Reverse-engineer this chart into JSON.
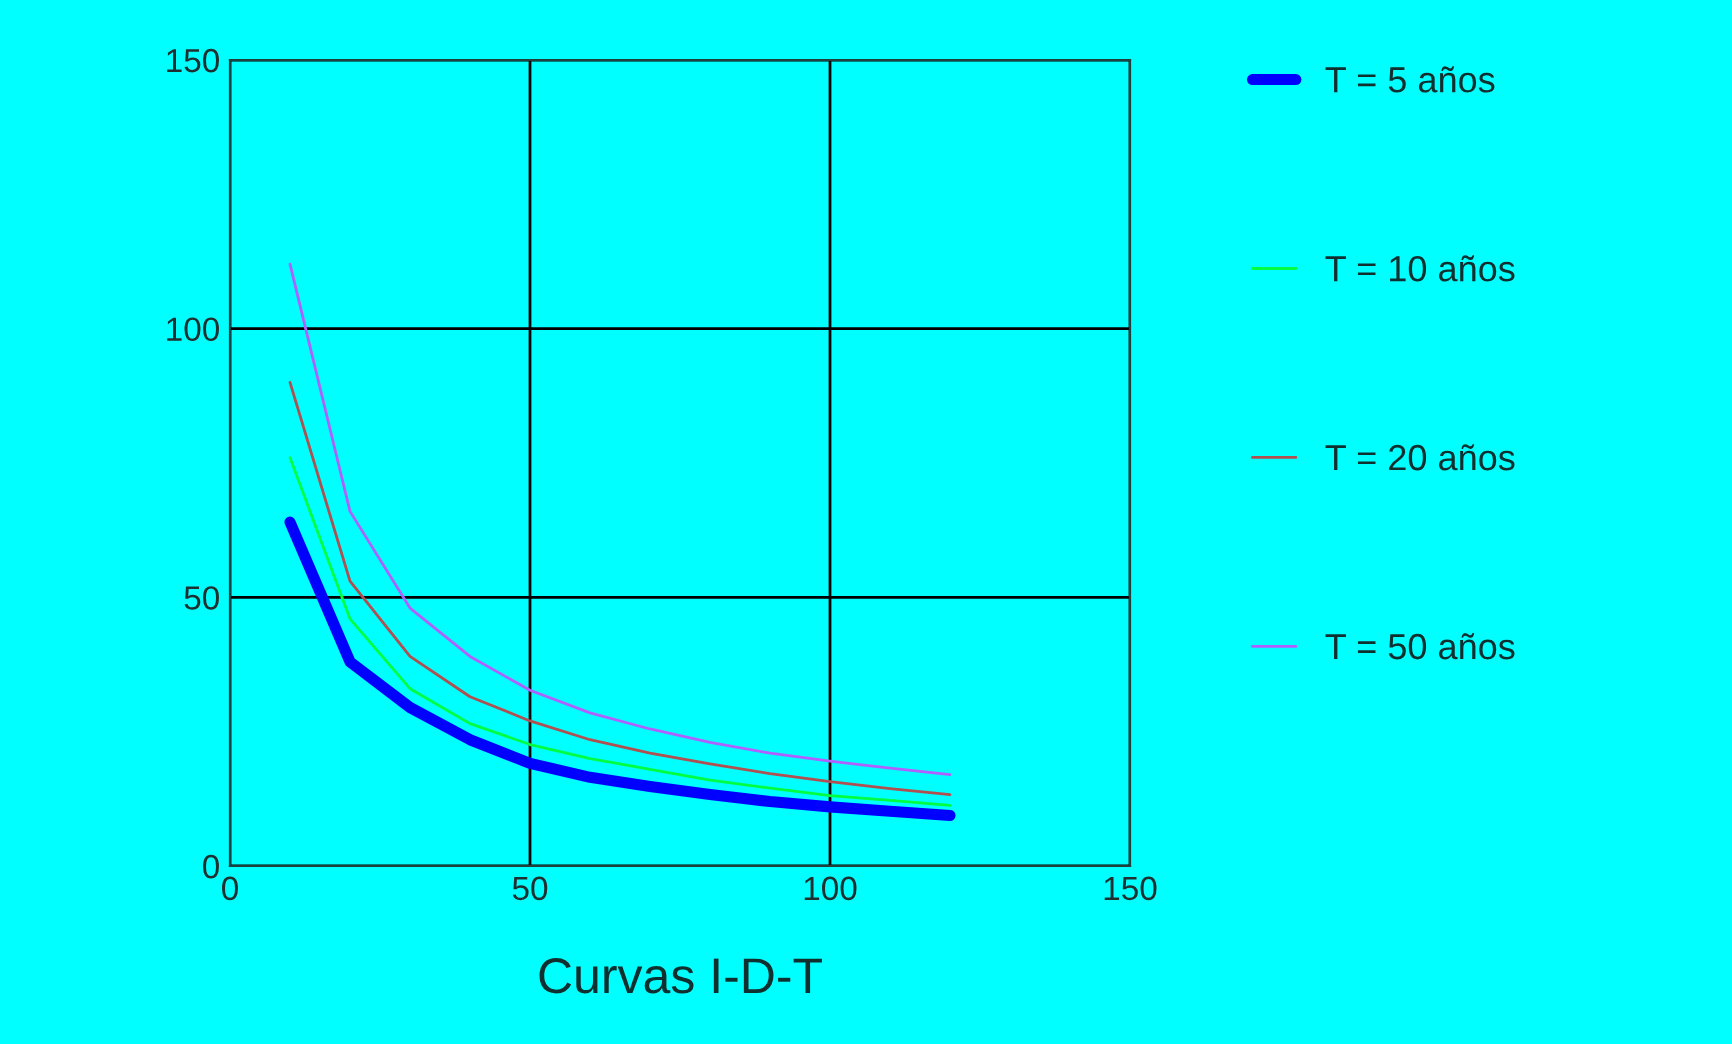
{
  "chart_data": {
    "type": "line",
    "xlabel": "Curvas I-D-T",
    "x": [
      10,
      20,
      30,
      40,
      50,
      60,
      70,
      80,
      90,
      100,
      110,
      120
    ],
    "series": [
      {
        "name": "T = 5 años",
        "color": "#0000ff",
        "values": [
          64,
          38,
          29.5,
          23.5,
          19.1,
          16.5,
          14.8,
          13.3,
          12,
          11,
          10.2,
          9.4
        ]
      },
      {
        "name": "T = 10 años",
        "color": "#00ff40",
        "values": [
          76,
          46,
          33,
          26.5,
          22.6,
          20,
          18,
          16,
          14.5,
          13.1,
          12.2,
          11.3
        ]
      },
      {
        "name": "T = 20 años",
        "color": "#b05050",
        "values": [
          90,
          53,
          39,
          31.5,
          27,
          23.5,
          21,
          19,
          17.2,
          15.7,
          14.4,
          13.3
        ]
      },
      {
        "name": "T = 50 años",
        "color": "#b060ff",
        "values": [
          112,
          66,
          48,
          39,
          32.7,
          28.5,
          25.5,
          23,
          21,
          19.5,
          18.2,
          17
        ]
      }
    ],
    "xlim": [
      0,
      150
    ],
    "xticks": [
      0,
      50,
      100,
      150
    ],
    "ylim": [
      0,
      150
    ],
    "yticks": [
      0,
      50,
      100,
      150
    ],
    "grid": true,
    "legend": "right",
    "marker": "none",
    "line_style": "solid"
  }
}
